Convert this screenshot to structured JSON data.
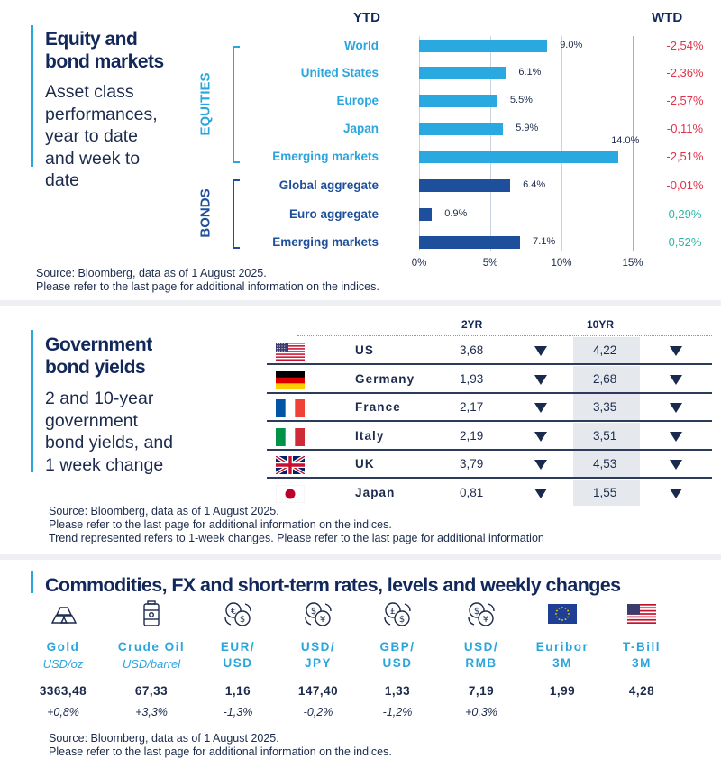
{
  "colors": {
    "accent": "#2aa6dc",
    "equity_bar": "#29a9e0",
    "bond_bar": "#1e4f9a",
    "negative": "#e0334a",
    "positive": "#2bb3a4",
    "navy": "#12285b"
  },
  "section1": {
    "title_line1": "Equity and",
    "title_line2": "bond markets",
    "desc_lines": [
      "Asset class",
      "performances,",
      "year to date",
      "and week to",
      "date"
    ],
    "ytd_header": "YTD",
    "wtd_header": "WTD",
    "equities_label": "EQUITIES",
    "bonds_label": "BONDS",
    "source_line1": "Source: Bloomberg, data as of 1 August  2025.",
    "source_line2": "Please refer to the last page for additional information on the indices."
  },
  "chart_data": {
    "type": "bar",
    "orientation": "horizontal",
    "title": "YTD",
    "categories": [
      "World",
      "United States",
      "Europe",
      "Japan",
      "Emerging  markets",
      "Global aggregate",
      "Euro aggregate",
      "Emerging  markets"
    ],
    "groups": [
      "equities",
      "equities",
      "equities",
      "equities",
      "equities",
      "bonds",
      "bonds",
      "bonds"
    ],
    "values": [
      9.0,
      6.1,
      5.5,
      5.9,
      14.0,
      6.4,
      0.9,
      7.1
    ],
    "value_labels": [
      "9.0%",
      "6.1%",
      "5.5%",
      "5.9%",
      "14.0%",
      "6.4%",
      "0.9%",
      "7.1%"
    ],
    "wtd": [
      "-2,54%",
      "-2,36%",
      "-2,57%",
      "-0,11%",
      "-2,51%",
      "-0,01%",
      "0,29%",
      "0,52%"
    ],
    "wtd_values": [
      -2.54,
      -2.36,
      -2.57,
      -0.11,
      -2.51,
      -0.01,
      0.29,
      0.52
    ],
    "xlim": [
      0,
      15
    ],
    "xticks": [
      0,
      5,
      10,
      15
    ],
    "xtick_labels": [
      "0%",
      "5%",
      "10%",
      "15%"
    ]
  },
  "section2": {
    "title_line1": "Government",
    "title_line2": "bond yields",
    "desc_lines": [
      "2 and 10-year",
      "government",
      "bond yields, and",
      "1 week change"
    ],
    "col_2yr": "2YR",
    "col_10yr": "10YR",
    "rows": [
      {
        "country": "US",
        "flag": "us-flag",
        "yr2": "3,68",
        "yr2_trend": "down",
        "yr10": "4,22",
        "yr10_trend": "down"
      },
      {
        "country": "Germany",
        "flag": "germany-flag",
        "yr2": "1,93",
        "yr2_trend": "down",
        "yr10": "2,68",
        "yr10_trend": "down"
      },
      {
        "country": "France",
        "flag": "france-flag",
        "yr2": "2,17",
        "yr2_trend": "down",
        "yr10": "3,35",
        "yr10_trend": "down"
      },
      {
        "country": "Italy",
        "flag": "italy-flag",
        "yr2": "2,19",
        "yr2_trend": "down",
        "yr10": "3,51",
        "yr10_trend": "down"
      },
      {
        "country": "UK",
        "flag": "uk-flag",
        "yr2": "3,79",
        "yr2_trend": "down",
        "yr10": "4,53",
        "yr10_trend": "down"
      },
      {
        "country": "Japan",
        "flag": "japan-flag",
        "yr2": "0,81",
        "yr2_trend": "down",
        "yr10": "1,55",
        "yr10_trend": "down"
      }
    ],
    "source_line1": "Source: Bloomberg, data as of 1 August 2025.",
    "source_line2": "Please refer to the last page for additional information on the indices.",
    "source_line3": "Trend represented refers to 1-week changes. Please refer to the last page for additional information"
  },
  "section3": {
    "title": "Commodities, FX and short-term rates, levels and weekly changes",
    "items": [
      {
        "name_line1": "Gold",
        "name_line2": "",
        "unit": "USD/oz",
        "value": "3363,48",
        "change": "+0,8%",
        "icon": "gold-bars-icon"
      },
      {
        "name_line1": "Crude Oil",
        "name_line2": "",
        "unit": "USD/barrel",
        "value": "67,33",
        "change": "+3,3%",
        "icon": "oil-barrel-icon"
      },
      {
        "name_line1": "EUR/",
        "name_line2": "USD",
        "unit": "",
        "value": "1,16",
        "change": "-1,3%",
        "icon": "euro-dollar-exchange-icon"
      },
      {
        "name_line1": "USD/",
        "name_line2": "JPY",
        "unit": "",
        "value": "147,40",
        "change": "-0,2%",
        "icon": "dollar-yen-exchange-icon"
      },
      {
        "name_line1": "GBP/",
        "name_line2": "USD",
        "unit": "",
        "value": "1,33",
        "change": "-1,2%",
        "icon": "pound-dollar-exchange-icon"
      },
      {
        "name_line1": "USD/",
        "name_line2": "RMB",
        "unit": "",
        "value": "7,19",
        "change": "+0,3%",
        "icon": "dollar-yuan-exchange-icon"
      },
      {
        "name_line1": "Euribor",
        "name_line2": "3M",
        "unit": "",
        "value": "1,99",
        "change": "",
        "icon": "eu-flag-icon"
      },
      {
        "name_line1": "T-Bill",
        "name_line2": "3M",
        "unit": "",
        "value": "4,28",
        "change": "",
        "icon": "us-flag-icon"
      }
    ],
    "source_line1": "Source: Bloomberg, data as of 1 August 2025.",
    "source_line2": "Please refer to the last page for additional information on the indices."
  }
}
